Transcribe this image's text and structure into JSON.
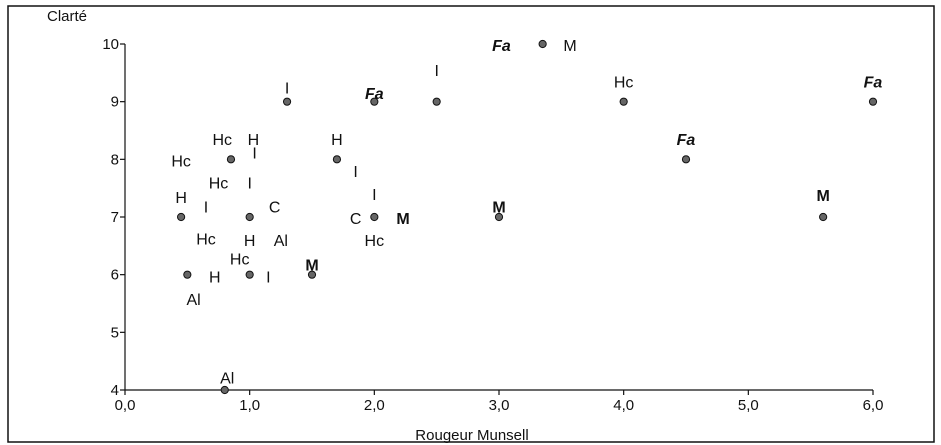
{
  "chart_data": {
    "type": "scatter",
    "title": "",
    "xlabel": "Rougeur Munsell",
    "ylabel": "Clarté",
    "xlim": [
      0,
      6
    ],
    "ylim": [
      4,
      10
    ],
    "x_ticks": [
      "0,0",
      "1,0",
      "2,0",
      "3,0",
      "4,0",
      "5,0",
      "6,0"
    ],
    "y_ticks": [
      "4",
      "5",
      "6",
      "7",
      "8",
      "9",
      "10"
    ],
    "grid": false,
    "legend": "none",
    "points": [
      {
        "x": 0.8,
        "y": 4.0
      },
      {
        "x": 0.5,
        "y": 6.0
      },
      {
        "x": 1.0,
        "y": 6.0
      },
      {
        "x": 1.5,
        "y": 6.0
      },
      {
        "x": 0.45,
        "y": 7.0
      },
      {
        "x": 1.0,
        "y": 7.0
      },
      {
        "x": 2.0,
        "y": 7.0
      },
      {
        "x": 3.0,
        "y": 7.0
      },
      {
        "x": 5.6,
        "y": 7.0
      },
      {
        "x": 0.85,
        "y": 8.0
      },
      {
        "x": 1.7,
        "y": 8.0
      },
      {
        "x": 4.5,
        "y": 8.0
      },
      {
        "x": 1.3,
        "y": 9.0
      },
      {
        "x": 2.0,
        "y": 9.0
      },
      {
        "x": 2.5,
        "y": 9.0
      },
      {
        "x": 4.0,
        "y": 9.0
      },
      {
        "x": 6.0,
        "y": 9.0
      },
      {
        "x": 3.35,
        "y": 10.0
      }
    ],
    "annotations": [
      {
        "text": "Al",
        "x": 0.82,
        "y": 4.22,
        "style": "normal"
      },
      {
        "text": "Al",
        "x": 0.55,
        "y": 5.58,
        "style": "normal"
      },
      {
        "text": "H",
        "x": 0.72,
        "y": 5.97,
        "style": "normal"
      },
      {
        "text": "I",
        "x": 1.15,
        "y": 5.97,
        "style": "normal"
      },
      {
        "text": "M",
        "x": 1.5,
        "y": 6.18,
        "style": "bold"
      },
      {
        "text": "Hc",
        "x": 0.92,
        "y": 6.28,
        "style": "normal"
      },
      {
        "text": "Hc",
        "x": 0.65,
        "y": 6.63,
        "style": "normal"
      },
      {
        "text": "H",
        "x": 1.0,
        "y": 6.6,
        "style": "normal"
      },
      {
        "text": "Al",
        "x": 1.25,
        "y": 6.6,
        "style": "normal"
      },
      {
        "text": "Hc",
        "x": 2.0,
        "y": 6.6,
        "style": "normal"
      },
      {
        "text": "C",
        "x": 1.85,
        "y": 6.98,
        "style": "normal"
      },
      {
        "text": "M",
        "x": 2.23,
        "y": 6.98,
        "style": "bold"
      },
      {
        "text": "C",
        "x": 1.2,
        "y": 7.18,
        "style": "normal"
      },
      {
        "text": "I",
        "x": 0.65,
        "y": 7.18,
        "style": "normal"
      },
      {
        "text": "H",
        "x": 0.45,
        "y": 7.35,
        "style": "normal"
      },
      {
        "text": "I",
        "x": 2.0,
        "y": 7.4,
        "style": "normal"
      },
      {
        "text": "M",
        "x": 3.0,
        "y": 7.18,
        "style": "bold"
      },
      {
        "text": "M",
        "x": 5.6,
        "y": 7.38,
        "style": "bold"
      },
      {
        "text": "Hc",
        "x": 0.75,
        "y": 7.6,
        "style": "normal"
      },
      {
        "text": "I",
        "x": 1.0,
        "y": 7.6,
        "style": "normal"
      },
      {
        "text": "Hc",
        "x": 0.45,
        "y": 7.98,
        "style": "normal"
      },
      {
        "text": "I",
        "x": 1.85,
        "y": 7.8,
        "style": "normal"
      },
      {
        "text": "Hc",
        "x": 0.78,
        "y": 8.35,
        "style": "normal"
      },
      {
        "text": "H",
        "x": 1.03,
        "y": 8.35,
        "style": "normal"
      },
      {
        "text": "I",
        "x": 1.04,
        "y": 8.12,
        "style": "normal"
      },
      {
        "text": "H",
        "x": 1.7,
        "y": 8.35,
        "style": "normal"
      },
      {
        "text": "Fa",
        "x": 4.5,
        "y": 8.35,
        "style": "italic"
      },
      {
        "text": "Fa",
        "x": 2.0,
        "y": 9.15,
        "style": "italic"
      },
      {
        "text": "I",
        "x": 1.3,
        "y": 9.25,
        "style": "normal"
      },
      {
        "text": "I",
        "x": 2.5,
        "y": 9.55,
        "style": "normal"
      },
      {
        "text": "Hc",
        "x": 4.0,
        "y": 9.35,
        "style": "normal"
      },
      {
        "text": "Fa",
        "x": 6.0,
        "y": 9.35,
        "style": "italic"
      },
      {
        "text": "Fa",
        "x": 3.02,
        "y": 9.98,
        "style": "italic"
      },
      {
        "text": "M",
        "x": 3.57,
        "y": 9.98,
        "style": "normal"
      }
    ]
  }
}
